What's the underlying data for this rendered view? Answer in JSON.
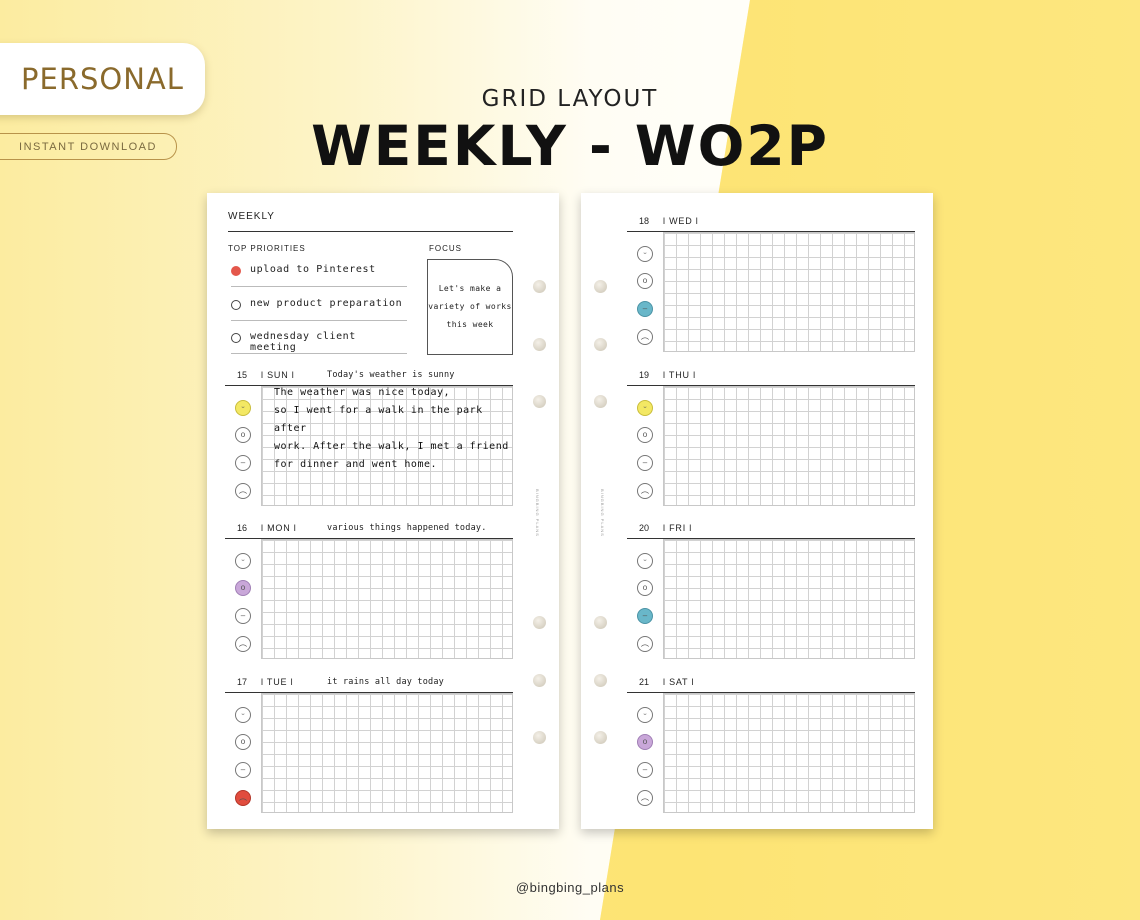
{
  "badge": {
    "label": "PERSONAL",
    "sublabel": "INSTANT DOWNLOAD"
  },
  "header": {
    "subtitle": "GRID LAYOUT",
    "title": "WEEKLY - WO2P"
  },
  "credit": "@bingbing_plans",
  "brand_vertical": "BINGBING PLANS",
  "colors": {
    "red": "#e4574b",
    "yellow": "#f3e864",
    "purple": "#c9a7d9",
    "blue": "#69b7c9",
    "bg_yellow": "#fde474",
    "badge_text": "#8a6a2c"
  },
  "left_page": {
    "heading": "WEEKLY",
    "top_priorities": {
      "label": "TOP PRIORITIES",
      "items": [
        {
          "text": "upload to Pinterest",
          "done": true
        },
        {
          "text": "new product preparation",
          "done": false
        },
        {
          "text": "wednesday client meeting",
          "done": false
        }
      ]
    },
    "focus": {
      "label": "FOCUS",
      "text": "Let's make a\nvariety of works\nthis week"
    },
    "days": [
      {
        "num": "15",
        "name": "l SUN l",
        "note": "Today's weather is sunny",
        "moods": [
          "smile-icon",
          "surprised-icon",
          "neutral-icon",
          "sad-icon"
        ],
        "mood_colors": [
          "yellow",
          "",
          "",
          ""
        ],
        "journal": "The weather was nice today,\nso I went for a walk in the park after\nwork. After the walk, I met a friend\nfor dinner and went home."
      },
      {
        "num": "16",
        "name": "l MON l",
        "note": "various things happened today.",
        "moods": [
          "smile-icon",
          "surprised-icon",
          "neutral-icon",
          "sad-icon"
        ],
        "mood_colors": [
          "",
          "purple",
          "",
          ""
        ],
        "journal": ""
      },
      {
        "num": "17",
        "name": "l TUE l",
        "note": "it rains all day today",
        "moods": [
          "smile-icon",
          "surprised-icon",
          "neutral-icon",
          "sad-icon"
        ],
        "mood_colors": [
          "",
          "",
          "",
          "red"
        ],
        "journal": ""
      }
    ]
  },
  "right_page": {
    "days": [
      {
        "num": "18",
        "name": "l WED l",
        "note": "",
        "moods": [
          "smile-icon",
          "surprised-icon",
          "neutral-icon",
          "sad-icon"
        ],
        "mood_colors": [
          "",
          "",
          "blue",
          ""
        ]
      },
      {
        "num": "19",
        "name": "l THU l",
        "note": "",
        "moods": [
          "smile-icon",
          "surprised-icon",
          "neutral-icon",
          "sad-icon"
        ],
        "mood_colors": [
          "yellow",
          "",
          "",
          ""
        ]
      },
      {
        "num": "20",
        "name": "l FRI l",
        "note": "",
        "moods": [
          "smile-icon",
          "surprised-icon",
          "neutral-icon",
          "sad-icon"
        ],
        "mood_colors": [
          "",
          "",
          "blue",
          ""
        ]
      },
      {
        "num": "21",
        "name": "l SAT l",
        "note": "",
        "moods": [
          "smile-icon",
          "surprised-icon",
          "neutral-icon",
          "sad-icon"
        ],
        "mood_colors": [
          "",
          "purple",
          "",
          ""
        ]
      }
    ]
  }
}
